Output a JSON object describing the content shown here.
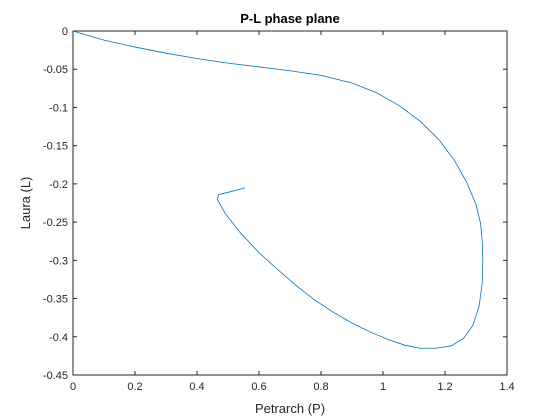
{
  "chart_data": {
    "type": "line",
    "title": "P-L phase plane",
    "xlabel": "Petrarch (P)",
    "ylabel": "Laura (L)",
    "xlim": [
      0,
      1.4
    ],
    "ylim": [
      -0.45,
      0
    ],
    "xticks": [
      0,
      0.2,
      0.4,
      0.6,
      0.8,
      1,
      1.2,
      1.4
    ],
    "yticks": [
      0,
      -0.05,
      -0.1,
      -0.15,
      -0.2,
      -0.25,
      -0.3,
      -0.35,
      -0.4,
      -0.45
    ],
    "xtick_labels": [
      "0",
      "0.2",
      "0.4",
      "0.6",
      "0.8",
      "1",
      "1.2",
      "1.4"
    ],
    "ytick_labels": [
      "0",
      "-0.05",
      "-0.1",
      "-0.15",
      "-0.2",
      "-0.25",
      "-0.3",
      "-0.35",
      "-0.4",
      "-0.45"
    ],
    "grid": false,
    "series": [
      {
        "color": "#0072BD",
        "x": [
          0,
          0.05,
          0.1,
          0.2,
          0.3,
          0.4,
          0.5,
          0.6,
          0.7,
          0.8,
          0.9,
          0.98,
          1.05,
          1.12,
          1.18,
          1.23,
          1.27,
          1.3,
          1.315,
          1.32,
          1.322,
          1.32,
          1.31,
          1.29,
          1.26,
          1.22,
          1.17,
          1.12,
          1.07,
          1.02,
          0.96,
          0.9,
          0.84,
          0.78,
          0.72,
          0.66,
          0.6,
          0.54,
          0.49,
          0.465,
          0.47,
          0.5,
          0.53,
          0.555
        ],
        "y": [
          0,
          -0.006,
          -0.012,
          -0.021,
          -0.029,
          -0.036,
          -0.042,
          -0.047,
          -0.052,
          -0.058,
          -0.068,
          -0.081,
          -0.097,
          -0.118,
          -0.142,
          -0.169,
          -0.198,
          -0.227,
          -0.252,
          -0.275,
          -0.3,
          -0.33,
          -0.36,
          -0.385,
          -0.402,
          -0.412,
          -0.415,
          -0.415,
          -0.411,
          -0.404,
          -0.394,
          -0.382,
          -0.368,
          -0.352,
          -0.333,
          -0.312,
          -0.29,
          -0.264,
          -0.238,
          -0.22,
          -0.214,
          -0.211,
          -0.208,
          -0.205
        ]
      }
    ]
  }
}
